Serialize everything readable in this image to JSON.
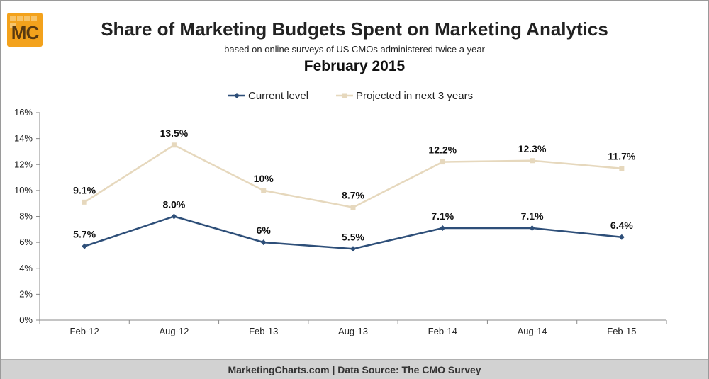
{
  "header": {
    "logo_text": "MC",
    "title": "Share of Marketing Budgets Spent on Marketing Analytics",
    "subtitle": "based on online surveys of US CMOs administered twice a year",
    "date": "February 2015"
  },
  "footer": {
    "text": "MarketingCharts.com | Data Source: The CMO Survey"
  },
  "colors": {
    "current": "#2e4f79",
    "projected": "#e6d8bd"
  },
  "chart_data": {
    "type": "line",
    "x": [
      "Feb-12",
      "Aug-12",
      "Feb-13",
      "Aug-13",
      "Feb-14",
      "Aug-14",
      "Feb-15"
    ],
    "ylim": [
      0,
      16
    ],
    "yticks": [
      0,
      2,
      4,
      6,
      8,
      10,
      12,
      14,
      16
    ],
    "ytick_labels": [
      "0%",
      "2%",
      "4%",
      "6%",
      "8%",
      "10%",
      "12%",
      "14%",
      "16%"
    ],
    "grid": false,
    "legend": "top-center",
    "series": [
      {
        "name": "Current level",
        "values": [
          5.7,
          8.0,
          6,
          5.5,
          7.1,
          7.1,
          6.4
        ],
        "labels": [
          "5.7%",
          "8.0%",
          "6%",
          "5.5%",
          "7.1%",
          "7.1%",
          "6.4%"
        ],
        "color": "#2e4f79",
        "marker": "diamond"
      },
      {
        "name": "Projected in next 3 years",
        "values": [
          9.1,
          13.5,
          10,
          8.7,
          12.2,
          12.3,
          11.7
        ],
        "labels": [
          "9.1%",
          "13.5%",
          "10%",
          "8.7%",
          "12.2%",
          "12.3%",
          "11.7%"
        ],
        "color": "#e6d8bd",
        "marker": "square"
      }
    ]
  }
}
